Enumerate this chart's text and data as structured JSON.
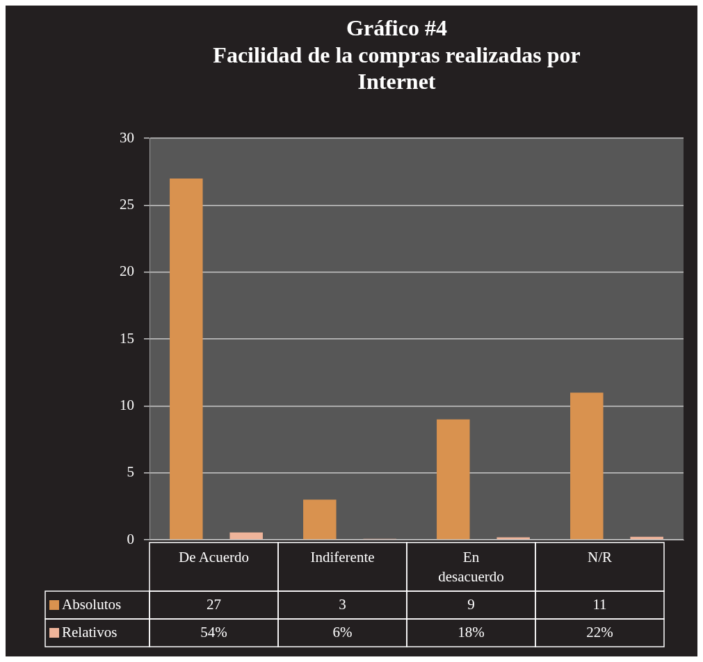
{
  "chart_data": {
    "type": "bar",
    "title": "Gráfico #4\nFacilidad de la compras realizadas por\nInternet",
    "categories": [
      "De Acuerdo",
      "Indiferente",
      "En\ndesacuerdo",
      "N/R"
    ],
    "series": [
      {
        "name": "Absolutos",
        "color": "#d9924f",
        "values": [
          27,
          3,
          9,
          11
        ],
        "value_labels": [
          "27",
          "3",
          "9",
          "11"
        ]
      },
      {
        "name": "Relativos",
        "color": "#efb49a",
        "values": [
          0.54,
          0.06,
          0.18,
          0.22
        ],
        "value_labels": [
          "54%",
          "6%",
          "18%",
          "22%"
        ]
      }
    ],
    "ylim": [
      0,
      30
    ],
    "yticks": [
      0,
      5,
      10,
      15,
      20,
      25,
      30
    ],
    "grid": "y",
    "legend": "bottom"
  }
}
